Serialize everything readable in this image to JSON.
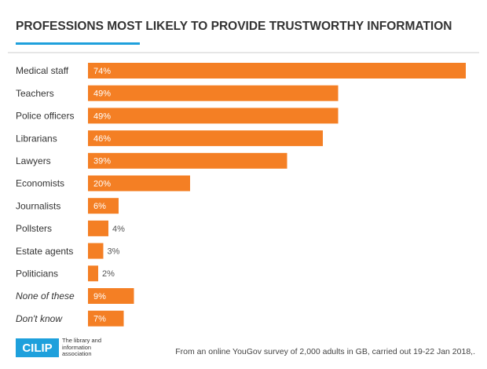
{
  "chart_data": {
    "type": "bar",
    "orientation": "horizontal",
    "title": "PROFESSIONS MOST LIKELY TO PROVIDE TRUSTWORTHY INFORMATION",
    "categories": [
      "Medical staff",
      "Teachers",
      "Police officers",
      "Librarians",
      "Lawyers",
      "Economists",
      "Journalists",
      "Pollsters",
      "Estate agents",
      "Politicians",
      "None of these",
      "Don't know"
    ],
    "category_styles": [
      "normal",
      "normal",
      "normal",
      "normal",
      "normal",
      "normal",
      "normal",
      "normal",
      "normal",
      "normal",
      "italic",
      "italic"
    ],
    "values": [
      74,
      49,
      49,
      46,
      39,
      20,
      6,
      4,
      3,
      2,
      9,
      7
    ],
    "value_labels": [
      "74%",
      "49%",
      "49%",
      "46%",
      "39%",
      "20%",
      "6%",
      "4%",
      "3%",
      "2%",
      "9%",
      "7%"
    ],
    "color": "#f47f24",
    "logo": {
      "name": "CILIP",
      "tagline": "The library and information association"
    },
    "source": "From an online YouGov survey of 2,000 adults in GB, carried out 19-22 Jan 2018,."
  }
}
